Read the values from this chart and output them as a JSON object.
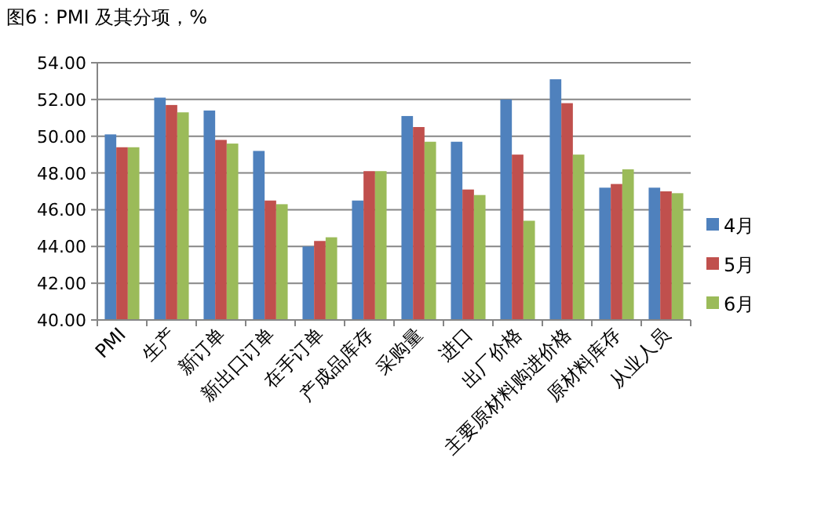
{
  "chart_data": {
    "type": "bar",
    "title": "图6：PMI 及其分项，%",
    "categories": [
      "PMI",
      "生产",
      "新订单",
      "新出口订单",
      "在手订单",
      "产成品库存",
      "采购量",
      "进口",
      "出厂价格",
      "主要原材料购进价格",
      "原材料库存",
      "从业人员"
    ],
    "series": [
      {
        "name": "4月",
        "color": "#4f81bd",
        "values": [
          50.1,
          52.1,
          51.4,
          49.2,
          44.0,
          46.5,
          51.1,
          49.7,
          52.0,
          53.1,
          47.2,
          47.2
        ]
      },
      {
        "name": "5月",
        "color": "#c0504d",
        "values": [
          49.4,
          51.7,
          49.8,
          46.5,
          44.3,
          48.1,
          50.5,
          47.1,
          49.0,
          51.8,
          47.4,
          47.0
        ]
      },
      {
        "name": "6月",
        "color": "#9bbb59",
        "values": [
          49.4,
          51.3,
          49.6,
          46.3,
          44.5,
          48.1,
          49.7,
          46.8,
          45.4,
          49.0,
          48.2,
          46.9
        ]
      }
    ],
    "ylim": [
      40,
      54
    ],
    "yticks": [
      {
        "value": 40,
        "label": "40.00"
      },
      {
        "value": 42,
        "label": "42.00"
      },
      {
        "value": 44,
        "label": "44.00"
      },
      {
        "value": 46,
        "label": "46.00"
      },
      {
        "value": 48,
        "label": "48.00"
      },
      {
        "value": 50,
        "label": "50.00"
      },
      {
        "value": 52,
        "label": "52.00"
      },
      {
        "value": 54,
        "label": "54.00"
      }
    ],
    "grid": "y",
    "legend": "right"
  }
}
